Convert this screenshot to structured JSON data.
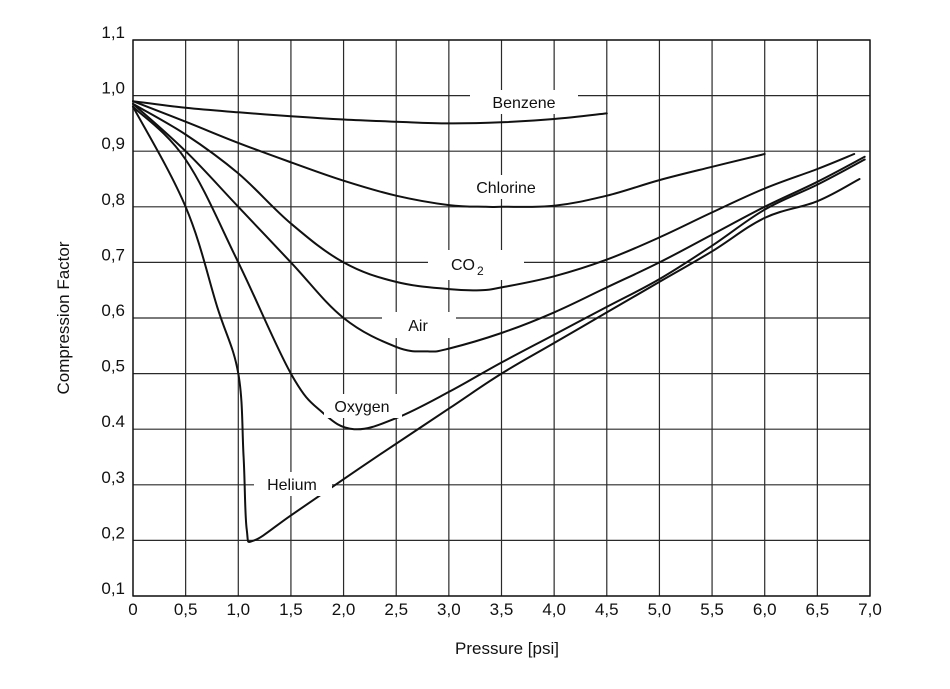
{
  "chart_data": {
    "type": "line",
    "title": "",
    "xlabel": "Pressure [psi]",
    "ylabel": "Compression Factor",
    "xlim": [
      0,
      7.0
    ],
    "ylim": [
      0.1,
      1.1
    ],
    "grid": true,
    "legend": "inline labels",
    "x_ticks": [
      "0",
      "0,5",
      "1,0",
      "1,5",
      "2,0",
      "2,5",
      "3,0",
      "3,5",
      "4,0",
      "4,5",
      "5,0",
      "5,5",
      "6,0",
      "6,5",
      "7,0"
    ],
    "y_ticks": [
      "1,1",
      "1,0",
      "0,9",
      "0,8",
      "0,7",
      "0,6",
      "0,5",
      "0.4",
      "0,3",
      "0,2",
      "0,1"
    ],
    "series": [
      {
        "name": "Benzene",
        "label_pos": [
          3.7,
          0.985
        ],
        "points": [
          [
            0,
            0.99
          ],
          [
            0.5,
            0.978
          ],
          [
            1.0,
            0.97
          ],
          [
            1.5,
            0.963
          ],
          [
            2.0,
            0.957
          ],
          [
            2.5,
            0.953
          ],
          [
            3.0,
            0.95
          ],
          [
            3.5,
            0.952
          ],
          [
            4.0,
            0.958
          ],
          [
            4.5,
            0.968
          ]
        ]
      },
      {
        "name": "Chlorine",
        "label_pos": [
          3.55,
          0.832
        ],
        "points": [
          [
            0,
            0.99
          ],
          [
            0.5,
            0.953
          ],
          [
            1.0,
            0.915
          ],
          [
            1.5,
            0.88
          ],
          [
            2.0,
            0.847
          ],
          [
            2.5,
            0.82
          ],
          [
            3.0,
            0.803
          ],
          [
            3.35,
            0.8
          ],
          [
            3.5,
            0.8
          ],
          [
            4.0,
            0.802
          ],
          [
            4.5,
            0.82
          ],
          [
            5.0,
            0.848
          ],
          [
            5.5,
            0.872
          ],
          [
            6.0,
            0.895
          ]
        ]
      },
      {
        "name": "CO2",
        "label_pos": [
          3.2,
          0.693
        ],
        "points": [
          [
            0,
            0.985
          ],
          [
            0.5,
            0.93
          ],
          [
            1.0,
            0.86
          ],
          [
            1.5,
            0.77
          ],
          [
            2.0,
            0.7
          ],
          [
            2.5,
            0.665
          ],
          [
            3.0,
            0.652
          ],
          [
            3.3,
            0.65
          ],
          [
            3.5,
            0.655
          ],
          [
            4.0,
            0.675
          ],
          [
            4.5,
            0.705
          ],
          [
            5.0,
            0.745
          ],
          [
            5.5,
            0.79
          ],
          [
            6.0,
            0.833
          ],
          [
            6.5,
            0.868
          ],
          [
            6.85,
            0.895
          ]
        ]
      },
      {
        "name": "Air",
        "label_pos": [
          2.72,
          0.585
        ],
        "points": [
          [
            0,
            0.985
          ],
          [
            0.5,
            0.9
          ],
          [
            1.0,
            0.8
          ],
          [
            1.5,
            0.7
          ],
          [
            2.0,
            0.6
          ],
          [
            2.5,
            0.548
          ],
          [
            2.8,
            0.54
          ],
          [
            3.0,
            0.545
          ],
          [
            3.5,
            0.573
          ],
          [
            4.0,
            0.61
          ],
          [
            4.5,
            0.655
          ],
          [
            5.0,
            0.7
          ],
          [
            5.5,
            0.75
          ],
          [
            6.0,
            0.8
          ],
          [
            6.5,
            0.845
          ],
          [
            6.95,
            0.89
          ]
        ]
      },
      {
        "name": "Oxygen",
        "label_pos": [
          2.2,
          0.44
        ],
        "points": [
          [
            0,
            0.98
          ],
          [
            0.5,
            0.885
          ],
          [
            1.0,
            0.7
          ],
          [
            1.5,
            0.5
          ],
          [
            1.8,
            0.43
          ],
          [
            2.1,
            0.4
          ],
          [
            2.5,
            0.42
          ],
          [
            3.0,
            0.467
          ],
          [
            3.5,
            0.52
          ],
          [
            4.0,
            0.57
          ],
          [
            4.5,
            0.62
          ],
          [
            5.0,
            0.67
          ],
          [
            5.5,
            0.73
          ],
          [
            6.0,
            0.795
          ],
          [
            6.5,
            0.84
          ],
          [
            6.95,
            0.885
          ]
        ]
      },
      {
        "name": "Helium",
        "label_pos": [
          1.52,
          0.3
        ],
        "points": [
          [
            0,
            0.98
          ],
          [
            0.5,
            0.8
          ],
          [
            0.8,
            0.62
          ],
          [
            1.0,
            0.5
          ],
          [
            1.05,
            0.35
          ],
          [
            1.08,
            0.22
          ],
          [
            1.15,
            0.2
          ],
          [
            1.5,
            0.245
          ],
          [
            2.0,
            0.31
          ],
          [
            2.35,
            0.355
          ],
          [
            3.0,
            0.437
          ],
          [
            3.5,
            0.5
          ],
          [
            4.0,
            0.555
          ],
          [
            4.5,
            0.61
          ],
          [
            5.0,
            0.665
          ],
          [
            5.5,
            0.72
          ],
          [
            6.0,
            0.78
          ],
          [
            6.5,
            0.81
          ],
          [
            6.9,
            0.85
          ]
        ]
      }
    ]
  },
  "labels": {
    "xlabel": "Pressure [psi]",
    "ylabel": "Compression Factor",
    "benzene": "Benzene",
    "chlorine": "Chlorine",
    "co2_main": "CO",
    "co2_sub": "2",
    "air": "Air",
    "oxygen": "Oxygen",
    "helium": "Helium"
  },
  "colors": {
    "line": "#111111",
    "grid": "#2a2a2a",
    "background": "#ffffff"
  }
}
